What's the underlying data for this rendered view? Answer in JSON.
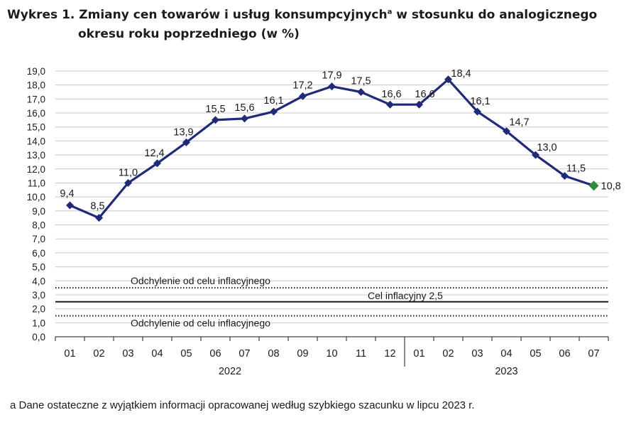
{
  "title": {
    "line1_main": "Wykres 1. Zmiany cen towarów i usług konsumpcyjnych",
    "line1_sup": "a",
    "line1_rest": " w stosunku do analogicznego",
    "line2": "okresu roku poprzedniego (w %)"
  },
  "footnote": "a Dane ostateczne z wyjątkiem informacji opracowanej według szybkiego szacunku w lipcu 2023 r.",
  "colors": {
    "series": "#1f2a7a",
    "last_point": "#2e8b3a",
    "grid": "#c8c8c8",
    "axis": "#1a1a1a"
  },
  "chart_data": {
    "type": "line",
    "x": [
      "01",
      "02",
      "03",
      "04",
      "05",
      "06",
      "07",
      "08",
      "09",
      "10",
      "11",
      "12",
      "01",
      "02",
      "03",
      "04",
      "05",
      "06",
      "07"
    ],
    "years": [
      {
        "label": "2022",
        "start_index": 0,
        "end_index": 11
      },
      {
        "label": "2023",
        "start_index": 12,
        "end_index": 18
      }
    ],
    "series": [
      {
        "values": [
          9.4,
          8.5,
          11.0,
          12.4,
          13.9,
          15.5,
          15.6,
          16.1,
          17.2,
          17.9,
          17.5,
          16.6,
          16.6,
          18.4,
          16.1,
          14.7,
          13.0,
          11.5,
          10.8
        ],
        "labels": [
          "9,4",
          "8,5",
          "11,0",
          "12,4",
          "13,9",
          "15,5",
          "15,6",
          "16,1",
          "17,2",
          "17,9",
          "17,5",
          "16,6",
          "16,6",
          "18,4",
          "16,1",
          "14,7",
          "13,0",
          "11,5",
          "10,8"
        ]
      }
    ],
    "y_ticks": [
      "0,0",
      "1,0",
      "2,0",
      "3,0",
      "4,0",
      "5,0",
      "6,0",
      "7,0",
      "8,0",
      "9,0",
      "10,0",
      "11,0",
      "12,0",
      "13,0",
      "14,0",
      "15,0",
      "16,0",
      "17,0",
      "18,0",
      "19,0"
    ],
    "ylim": [
      0,
      19
    ],
    "grid": true,
    "reference_lines": [
      {
        "value": 3.5,
        "style": "dotted",
        "label": "Odchylenie od celu inflacyjnego",
        "label_position": "above-left"
      },
      {
        "value": 2.5,
        "style": "solid",
        "label": "Cel inflacyjny 2,5",
        "label_position": "above-right"
      },
      {
        "value": 1.5,
        "style": "dotted",
        "label": "Odchylenie od celu inflacyjnego",
        "label_position": "below-left"
      }
    ],
    "highlight_last_point": true
  }
}
